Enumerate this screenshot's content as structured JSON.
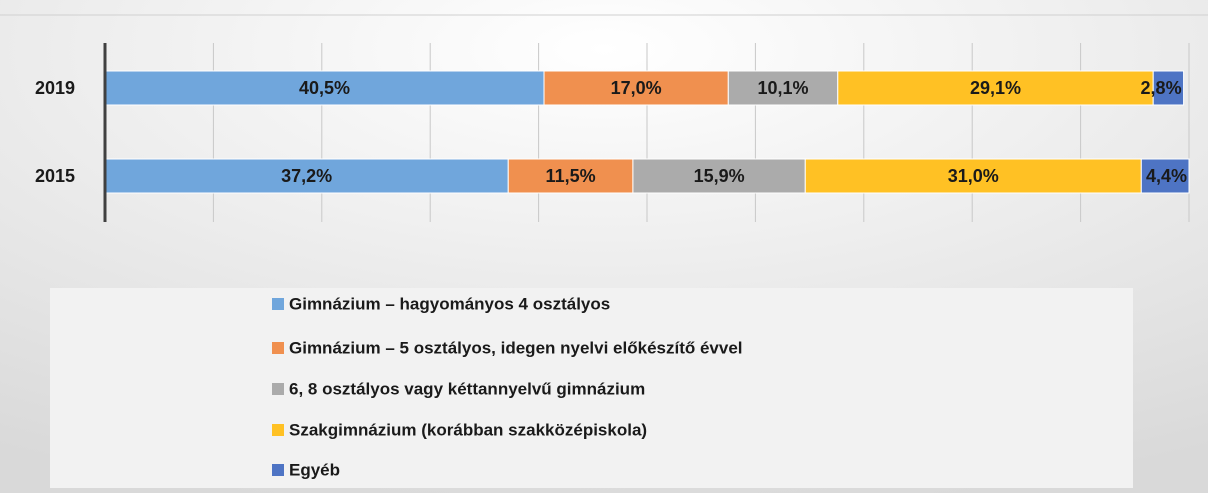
{
  "chart_data": {
    "type": "stacked-bar-horizontal",
    "categories": [
      "2019",
      "2015"
    ],
    "series": [
      {
        "name": "Gimnázium – hagyományos 4 osztályos",
        "color": "#70a6dc",
        "values": [
          40.5,
          37.2
        ],
        "value_labels": [
          "40,5%",
          "37,2%"
        ]
      },
      {
        "name": "Gimnázium – 5 osztályos, idegen nyelvi előkészítő évvel",
        "color": "#f0904f",
        "values": [
          17.0,
          11.5
        ],
        "value_labels": [
          "17,0%",
          "11,5%"
        ]
      },
      {
        "name": "6, 8 osztályos vagy kéttannyelvű gimnázium",
        "color": "#ababab",
        "values": [
          10.1,
          15.9
        ],
        "value_labels": [
          "10,1%",
          "15,9%"
        ]
      },
      {
        "name": "Szakgimnázium (korábban szakközépiskola)",
        "color": "#ffc124",
        "values": [
          29.1,
          31.0
        ],
        "value_labels": [
          "29,1%",
          "31,0%"
        ]
      },
      {
        "name": "Egyéb",
        "color": "#4e74c4",
        "values": [
          2.8,
          4.4
        ],
        "value_labels": [
          "2,8%",
          "4,4%"
        ]
      }
    ],
    "xlim": [
      0,
      100
    ],
    "xticks": [
      0,
      10,
      20,
      30,
      40,
      50,
      60,
      70,
      80,
      90,
      100
    ],
    "grid": true
  }
}
